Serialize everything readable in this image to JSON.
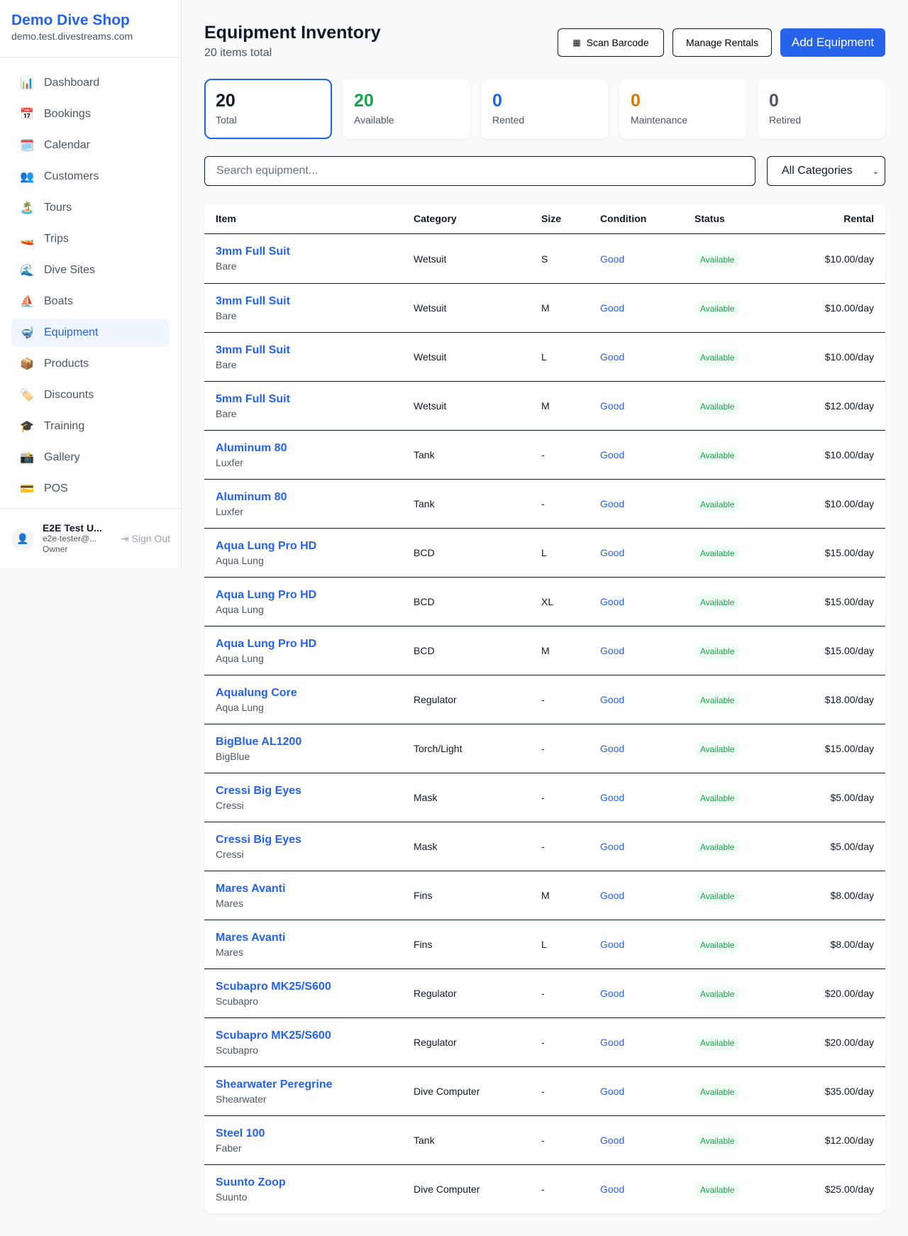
{
  "sidebar": {
    "brand": "Demo Dive Shop",
    "url": "demo.test.divestreams.com",
    "items": [
      {
        "label": "Dashboard",
        "icon": "📊"
      },
      {
        "label": "Bookings",
        "icon": "📅"
      },
      {
        "label": "Calendar",
        "icon": "🗓️"
      },
      {
        "label": "Customers",
        "icon": "👥"
      },
      {
        "label": "Tours",
        "icon": "🏝️"
      },
      {
        "label": "Trips",
        "icon": "🚤"
      },
      {
        "label": "Dive Sites",
        "icon": "🌊"
      },
      {
        "label": "Boats",
        "icon": "⛵"
      },
      {
        "label": "Equipment",
        "icon": "🤿",
        "active": true
      },
      {
        "label": "Products",
        "icon": "📦"
      },
      {
        "label": "Discounts",
        "icon": "🏷️"
      },
      {
        "label": "Training",
        "icon": "🎓"
      },
      {
        "label": "Gallery",
        "icon": "📸"
      },
      {
        "label": "POS",
        "icon": "💳"
      }
    ],
    "user": {
      "name": "E2E Test U...",
      "email": "e2e-tester@...",
      "role": "Owner",
      "signout": "Sign Out"
    }
  },
  "header": {
    "title": "Equipment Inventory",
    "subtitle": "20 items total",
    "scan": "Scan Barcode",
    "manage": "Manage Rentals",
    "add": "Add Equipment"
  },
  "stats": [
    {
      "value": "20",
      "label": "Total",
      "color": "#111827"
    },
    {
      "value": "20",
      "label": "Available",
      "color": "#16a34a"
    },
    {
      "value": "0",
      "label": "Rented",
      "color": "#2563eb"
    },
    {
      "value": "0",
      "label": "Maintenance",
      "color": "#d97706"
    },
    {
      "value": "0",
      "label": "Retired",
      "color": "#4b5563"
    }
  ],
  "filters": {
    "search_placeholder": "Search equipment...",
    "category": "All Categories"
  },
  "table": {
    "headers": [
      "Item",
      "Category",
      "Size",
      "Condition",
      "Status",
      "Rental"
    ],
    "rows": [
      [
        "3mm Full Suit",
        "Bare",
        "Wetsuit",
        "S",
        "Good",
        "Available",
        "$10.00/day"
      ],
      [
        "3mm Full Suit",
        "Bare",
        "Wetsuit",
        "M",
        "Good",
        "Available",
        "$10.00/day"
      ],
      [
        "3mm Full Suit",
        "Bare",
        "Wetsuit",
        "L",
        "Good",
        "Available",
        "$10.00/day"
      ],
      [
        "5mm Full Suit",
        "Bare",
        "Wetsuit",
        "M",
        "Good",
        "Available",
        "$12.00/day"
      ],
      [
        "Aluminum 80",
        "Luxfer",
        "Tank",
        "-",
        "Good",
        "Available",
        "$10.00/day"
      ],
      [
        "Aluminum 80",
        "Luxfer",
        "Tank",
        "-",
        "Good",
        "Available",
        "$10.00/day"
      ],
      [
        "Aqua Lung Pro HD",
        "Aqua Lung",
        "BCD",
        "L",
        "Good",
        "Available",
        "$15.00/day"
      ],
      [
        "Aqua Lung Pro HD",
        "Aqua Lung",
        "BCD",
        "XL",
        "Good",
        "Available",
        "$15.00/day"
      ],
      [
        "Aqua Lung Pro HD",
        "Aqua Lung",
        "BCD",
        "M",
        "Good",
        "Available",
        "$15.00/day"
      ],
      [
        "Aqualung Core",
        "Aqua Lung",
        "Regulator",
        "-",
        "Good",
        "Available",
        "$18.00/day"
      ],
      [
        "BigBlue AL1200",
        "BigBlue",
        "Torch/Light",
        "-",
        "Good",
        "Available",
        "$15.00/day"
      ],
      [
        "Cressi Big Eyes",
        "Cressi",
        "Mask",
        "-",
        "Good",
        "Available",
        "$5.00/day"
      ],
      [
        "Cressi Big Eyes",
        "Cressi",
        "Mask",
        "-",
        "Good",
        "Available",
        "$5.00/day"
      ],
      [
        "Mares Avanti",
        "Mares",
        "Fins",
        "M",
        "Good",
        "Available",
        "$8.00/day"
      ],
      [
        "Mares Avanti",
        "Mares",
        "Fins",
        "L",
        "Good",
        "Available",
        "$8.00/day"
      ],
      [
        "Scubapro MK25/S600",
        "Scubapro",
        "Regulator",
        "-",
        "Good",
        "Available",
        "$20.00/day"
      ],
      [
        "Scubapro MK25/S600",
        "Scubapro",
        "Regulator",
        "-",
        "Good",
        "Available",
        "$20.00/day"
      ],
      [
        "Shearwater Peregrine",
        "Shearwater",
        "Dive Computer",
        "-",
        "Good",
        "Available",
        "$35.00/day"
      ],
      [
        "Steel 100",
        "Faber",
        "Tank",
        "-",
        "Good",
        "Available",
        "$12.00/day"
      ],
      [
        "Suunto Zoop",
        "Suunto",
        "Dive Computer",
        "-",
        "Good",
        "Available",
        "$25.00/day"
      ]
    ]
  }
}
